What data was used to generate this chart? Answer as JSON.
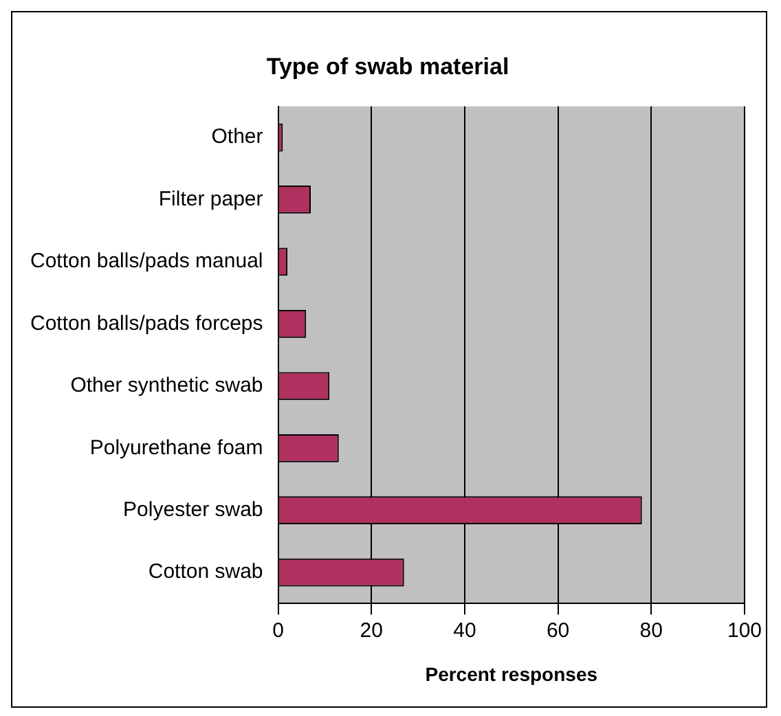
{
  "chart_data": {
    "type": "bar",
    "orientation": "horizontal",
    "title": "Type of swab material",
    "xlabel": "Percent responses",
    "categories": [
      "Other",
      "Filter paper",
      "Cotton balls/pads manual",
      "Cotton balls/pads forceps",
      "Other synthetic swab",
      "Polyurethane foam",
      "Polyester swab",
      "Cotton swab"
    ],
    "values": [
      1,
      7,
      2,
      6,
      11,
      13,
      78,
      27
    ],
    "color": "#b03060",
    "xlim": [
      0,
      100
    ],
    "xticks": [
      0,
      20,
      40,
      60,
      80,
      100
    ],
    "grid": "x",
    "legend": false
  }
}
